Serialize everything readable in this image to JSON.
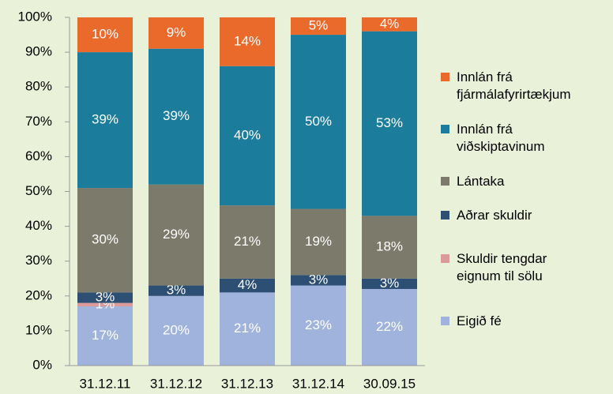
{
  "chart_data": {
    "type": "stacked_bar",
    "categories": [
      "31.12.11",
      "31.12.12",
      "31.12.13",
      "31.12.14",
      "30.09.15"
    ],
    "series": [
      {
        "name": "Eigið fé",
        "color": "#9fb3dc",
        "values": [
          17,
          20,
          21,
          23,
          22
        ],
        "value_labels": [
          "17%",
          "20%",
          "21%",
          "23%",
          "22%"
        ]
      },
      {
        "name": "Skuldir tengdar eignum til sölu",
        "color": "#dc9a9a",
        "values": [
          1,
          null,
          null,
          null,
          null
        ],
        "value_labels": [
          "1%",
          null,
          null,
          null,
          null
        ]
      },
      {
        "name": "Aðrar skuldir",
        "color": "#2d4f73",
        "values": [
          3,
          3,
          4,
          3,
          3
        ],
        "value_labels": [
          "3%",
          "3%",
          "4%",
          "3%",
          "3%"
        ]
      },
      {
        "name": "Lántaka",
        "color": "#7b7a6b",
        "values": [
          30,
          29,
          21,
          19,
          18
        ],
        "value_labels": [
          "30%",
          "29%",
          "21%",
          "19%",
          "18%"
        ]
      },
      {
        "name": "Innlán frá viðskiptavinum",
        "color": "#1b7c9c",
        "values": [
          39,
          39,
          40,
          50,
          53
        ],
        "value_labels": [
          "39%",
          "39%",
          "40%",
          "50%",
          "53%"
        ]
      },
      {
        "name": "Innlán frá fjármálafyrirtækjum",
        "color": "#ea6a2c",
        "values": [
          10,
          9,
          14,
          5,
          4
        ],
        "value_labels": [
          "10%",
          "9%",
          "14%",
          "5%",
          "4%"
        ]
      }
    ],
    "ylim": [
      0,
      100
    ],
    "yticks": [
      {
        "value": 0,
        "label": "0%"
      },
      {
        "value": 10,
        "label": "10%"
      },
      {
        "value": 20,
        "label": "20%"
      },
      {
        "value": 30,
        "label": "30%"
      },
      {
        "value": 40,
        "label": "40%"
      },
      {
        "value": 50,
        "label": "50%"
      },
      {
        "value": 60,
        "label": "60%"
      },
      {
        "value": 70,
        "label": "70%"
      },
      {
        "value": 80,
        "label": "80%"
      },
      {
        "value": 90,
        "label": "90%"
      },
      {
        "value": 100,
        "label": "100%"
      }
    ]
  }
}
